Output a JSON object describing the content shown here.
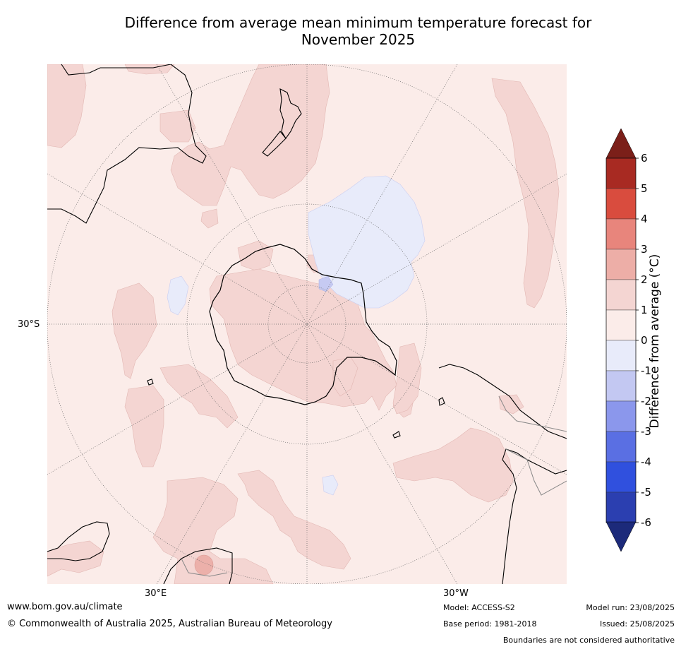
{
  "title_line1": "Difference from average mean minimum temperature forecast for",
  "title_line2": "November 2025",
  "map": {
    "lat_label": "30°S",
    "lon_label_east": "30°E",
    "lon_label_west": "30°W",
    "colors": {
      "background": "#fbece9",
      "warm_1_2": "#f4d5d2",
      "cool_0_-1": "#e8ebfa",
      "cool_-1_-2": "#c6caf2",
      "warm_2_3": "#ecb0aa",
      "land_outline": "#000000",
      "boundary": "#888888",
      "graticule": "#555555"
    }
  },
  "colorbar": {
    "title": "Difference from average (°C)",
    "ticks": [
      "6",
      "5",
      "4",
      "3",
      "2",
      "1",
      "0",
      "-1",
      "-2",
      "-3",
      "-4",
      "-5",
      "-6"
    ],
    "colors": [
      "#a82a22",
      "#d94c3e",
      "#e8857c",
      "#edaea7",
      "#f4d5d2",
      "#fbece9",
      "#e8ebfa",
      "#c3c8f2",
      "#8b97ec",
      "#5a6fe3",
      "#3050de",
      "#2b3fb0",
      "#1e2d7e"
    ],
    "top_arrow_color": "#7b1f19",
    "bottom_arrow_color": "#1c2a7a"
  },
  "footer": {
    "website": "www.bom.gov.au/climate",
    "copyright": "© Commonwealth of Australia 2025, Australian Bureau of Meteorology",
    "model": "Model: ACCESS-S2",
    "base_period": "Base period: 1981-2018",
    "model_run": "Model run: 23/08/2025",
    "issued": "Issued: 25/08/2025",
    "disclaimer": "Boundaries are not considered authoritative"
  }
}
